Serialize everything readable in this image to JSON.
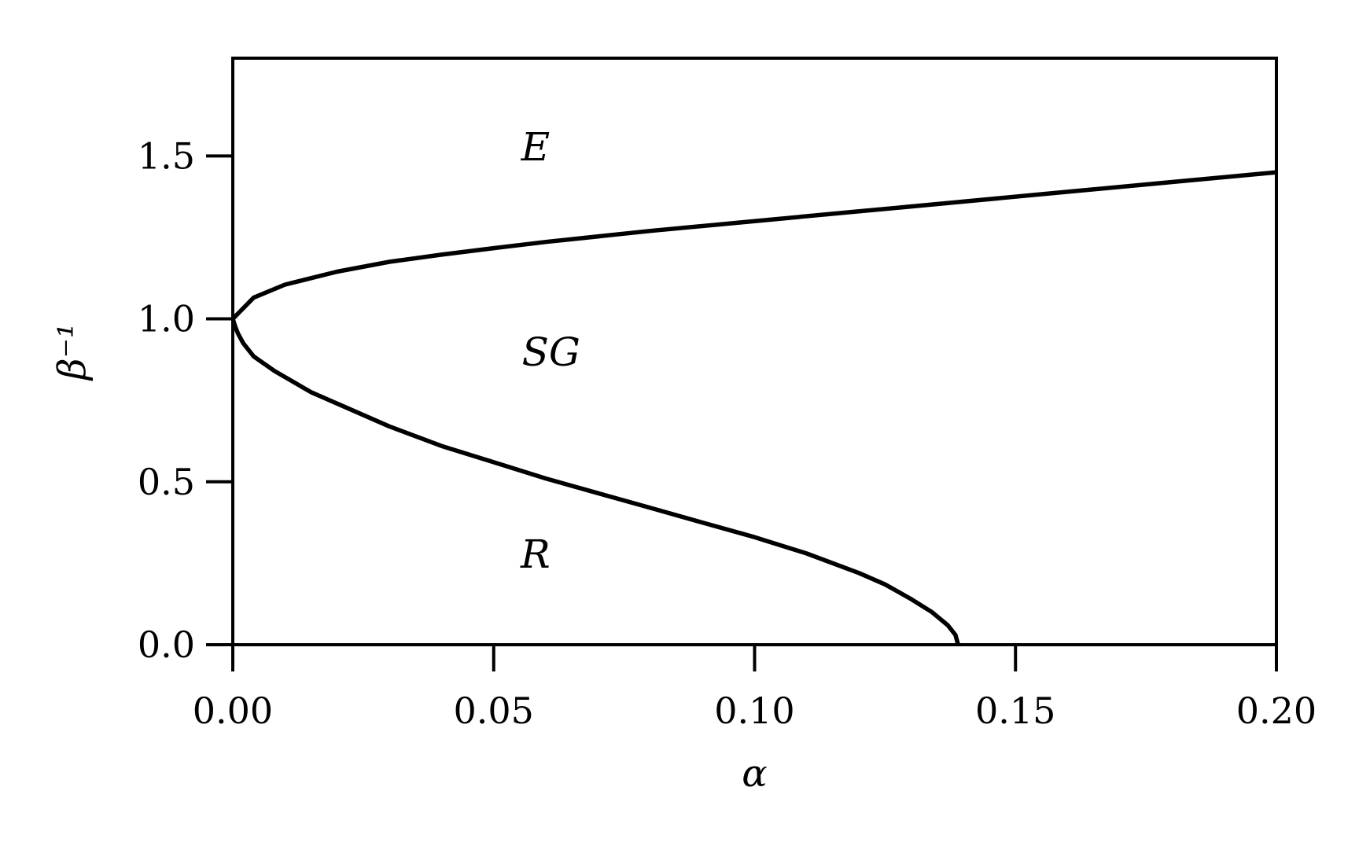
{
  "chart_data": {
    "type": "line",
    "title": "",
    "xlabel": "α",
    "ylabel": "β⁻¹",
    "xlim": [
      0,
      0.2
    ],
    "ylim": [
      0,
      1.8
    ],
    "xticks": [
      0,
      0.05,
      0.1,
      0.15,
      0.2
    ],
    "xtick_labels": [
      "0.00",
      "0.05",
      "0.10",
      "0.15",
      "0.20"
    ],
    "yticks": [
      0,
      0.5,
      1.0,
      1.5
    ],
    "ytick_labels": [
      "0.0",
      "0.5",
      "1.0",
      "1.5"
    ],
    "grid": false,
    "line_color": "#000000",
    "series": [
      {
        "x": [
          0,
          0.004,
          0.01,
          0.02,
          0.03,
          0.04,
          0.05,
          0.06,
          0.08,
          0.1,
          0.12,
          0.14,
          0.16,
          0.18,
          0.2
        ],
        "y": [
          1.0,
          1.065,
          1.105,
          1.145,
          1.175,
          1.197,
          1.217,
          1.236,
          1.27,
          1.3,
          1.33,
          1.36,
          1.39,
          1.42,
          1.45
        ]
      },
      {
        "x": [
          0,
          0.0005,
          0.001,
          0.002,
          0.004,
          0.008,
          0.015,
          0.02,
          0.03,
          0.04,
          0.05,
          0.06,
          0.07,
          0.08,
          0.09,
          0.1,
          0.11,
          0.12,
          0.125,
          0.13,
          0.134,
          0.137,
          0.1385,
          0.139
        ],
        "y": [
          1.0,
          0.975,
          0.955,
          0.925,
          0.885,
          0.84,
          0.775,
          0.74,
          0.67,
          0.61,
          0.56,
          0.51,
          0.465,
          0.42,
          0.375,
          0.33,
          0.28,
          0.22,
          0.185,
          0.14,
          0.1,
          0.06,
          0.03,
          0.0
        ]
      }
    ],
    "annotations": [
      {
        "text": "E",
        "x": 0.058,
        "y": 1.53
      },
      {
        "text": "SG",
        "x": 0.061,
        "y": 0.9
      },
      {
        "text": "R",
        "x": 0.058,
        "y": 0.28
      }
    ]
  }
}
